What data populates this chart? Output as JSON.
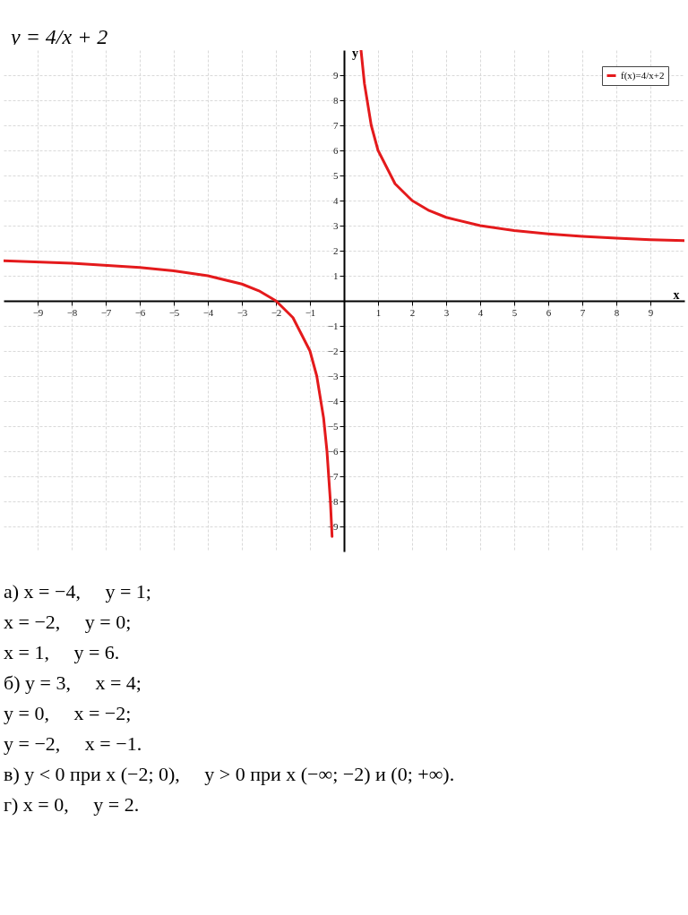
{
  "chart_data": {
    "type": "line",
    "title": "y = 4/x + 2",
    "xlabel": "x",
    "ylabel": "y",
    "x": [
      -10,
      -8,
      -6,
      -5,
      -4,
      -3,
      -2.5,
      -2,
      -1.5,
      -1,
      -0.8,
      -0.6,
      -0.5,
      -0.4,
      -0.35,
      0,
      0.5,
      0.6,
      0.8,
      1,
      1.5,
      2,
      2.5,
      3,
      4,
      5,
      6,
      7,
      8,
      9,
      10
    ],
    "series": [
      {
        "name": "f(x)=4/x+2",
        "color": "#e41a1c",
        "values": [
          1.6,
          1.5,
          1.33,
          1.2,
          1,
          0.67,
          0.4,
          0,
          -0.67,
          -2,
          -3,
          -4.67,
          -6,
          -8,
          -9.4,
          null,
          10,
          8.67,
          7,
          6,
          4.67,
          4,
          3.6,
          3.33,
          3,
          2.8,
          2.67,
          2.57,
          2.5,
          2.44,
          2.4
        ]
      }
    ],
    "xlim": [
      -10,
      10
    ],
    "ylim": [
      -10,
      10
    ],
    "xticks": [
      -9,
      -8,
      -7,
      -6,
      -5,
      -4,
      -3,
      -2,
      -1,
      1,
      2,
      3,
      4,
      5,
      6,
      7,
      8,
      9
    ],
    "yticks": [
      -9,
      -8,
      -7,
      -6,
      -5,
      -4,
      -3,
      -2,
      -1,
      1,
      2,
      3,
      4,
      5,
      6,
      7,
      8,
      9
    ],
    "grid": true,
    "legend": "top right",
    "marker": "none",
    "line_style": "solid",
    "annotations": [
      "а) x = −4,     y = 1;",
      "x = −2,     y = 0;",
      "x = 1,     y = 6.",
      "б) y = 3,     x = 4;",
      "y = 0,     x = −2;",
      "y = −2,     x = −1.",
      "в) y < 0 при x (−2; 0),     y > 0 при x (−∞; −2) и (0; +∞).",
      "г) x = 0,     y = 2."
    ]
  }
}
